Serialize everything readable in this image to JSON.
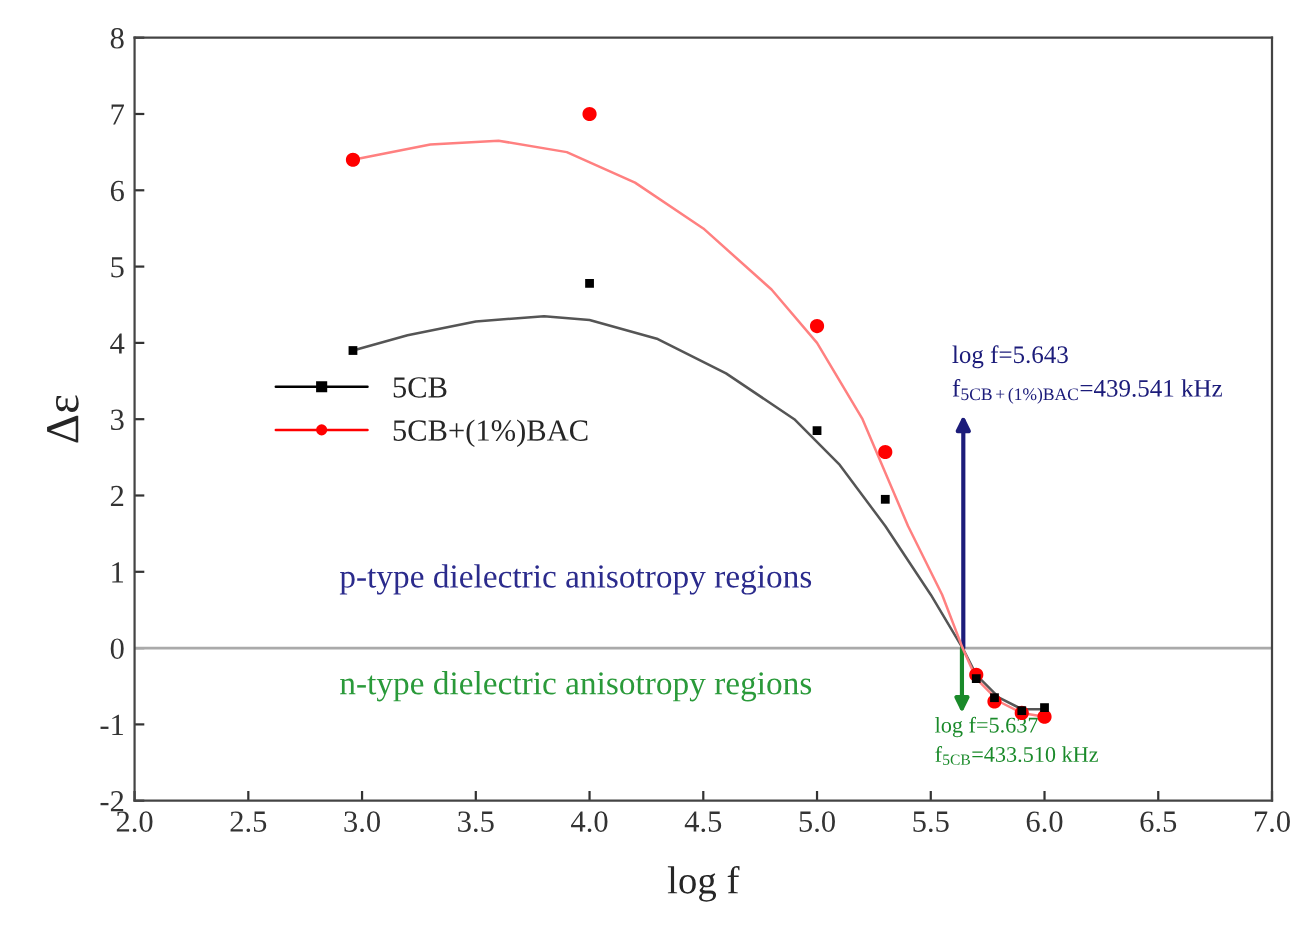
{
  "chart_data": {
    "type": "scatter",
    "xlabel": "log f",
    "ylabel": "Δε",
    "xlim": [
      2.0,
      7.0
    ],
    "xticks": [
      {
        "value": 2.0,
        "label": "2.0"
      },
      {
        "value": 2.5,
        "label": "2.5"
      },
      {
        "value": 3.0,
        "label": "3.0"
      },
      {
        "value": 3.5,
        "label": "3.5"
      },
      {
        "value": 4.0,
        "label": "4.0"
      },
      {
        "value": 4.5,
        "label": "4.5"
      },
      {
        "value": 5.0,
        "label": "5.0"
      },
      {
        "value": 5.5,
        "label": "5.5"
      },
      {
        "value": 6.0,
        "label": "6.0"
      },
      {
        "value": 6.5,
        "label": "6.5"
      },
      {
        "value": 7.0,
        "label": "7.0"
      }
    ],
    "ylim": [
      -2,
      8
    ],
    "yticks": [
      -2,
      -1,
      0,
      1,
      2,
      3,
      4,
      5,
      6,
      7,
      8
    ],
    "legend": "center left",
    "grid": false,
    "series": [
      {
        "name": "5CB",
        "color": "#000000",
        "marker": "square",
        "x": [
          2.96,
          4.0,
          5.0,
          5.3,
          5.7,
          5.78,
          5.9,
          6.0
        ],
        "values": [
          3.9,
          4.78,
          2.85,
          1.95,
          -0.4,
          -0.65,
          -0.82,
          -0.78
        ]
      },
      {
        "name": "5CB+(1%)BAC",
        "color": "#ff0000",
        "marker": "circle",
        "x": [
          2.96,
          4.0,
          5.0,
          5.3,
          5.7,
          5.78,
          5.9,
          6.0
        ],
        "values": [
          6.4,
          7.0,
          4.22,
          2.57,
          -0.35,
          -0.7,
          -0.85,
          -0.9
        ]
      },
      {
        "type": "line",
        "color": "#555555",
        "x": [
          2.96,
          3.2,
          3.5,
          3.8,
          4.0,
          4.3,
          4.6,
          4.9,
          5.1,
          5.3,
          5.5,
          5.64,
          5.7,
          5.8,
          5.9,
          6.0
        ],
        "values": [
          3.9,
          4.1,
          4.28,
          4.35,
          4.3,
          4.05,
          3.6,
          3.0,
          2.4,
          1.6,
          0.7,
          0.0,
          -0.35,
          -0.65,
          -0.8,
          -0.8
        ]
      },
      {
        "type": "line",
        "color": "#ff8080",
        "x": [
          2.96,
          3.3,
          3.6,
          3.9,
          4.2,
          4.5,
          4.8,
          5.0,
          5.2,
          5.4,
          5.55,
          5.64,
          5.7,
          5.8,
          5.9,
          6.0
        ],
        "values": [
          6.4,
          6.6,
          6.65,
          6.5,
          6.1,
          5.5,
          4.7,
          4.0,
          3.0,
          1.6,
          0.7,
          0.0,
          -0.4,
          -0.7,
          -0.85,
          -0.9
        ]
      }
    ],
    "ref_lines": [
      {
        "axis": "y",
        "value": 0,
        "color": "#aaaaaa"
      }
    ],
    "annotations": [
      "p-type dielectric anisotropy regions",
      "n-type dielectric anisotropy regions",
      {
        "text": "log f=5.643\nf$_{5CB+(1%)BAC}$=439.541 kHz",
        "x": 5.643,
        "y": 0
      },
      {
        "text": "log f=5.637\nf$_{5CB}$=433.510 kHz",
        "x": 5.637,
        "y": 0
      }
    ]
  }
}
